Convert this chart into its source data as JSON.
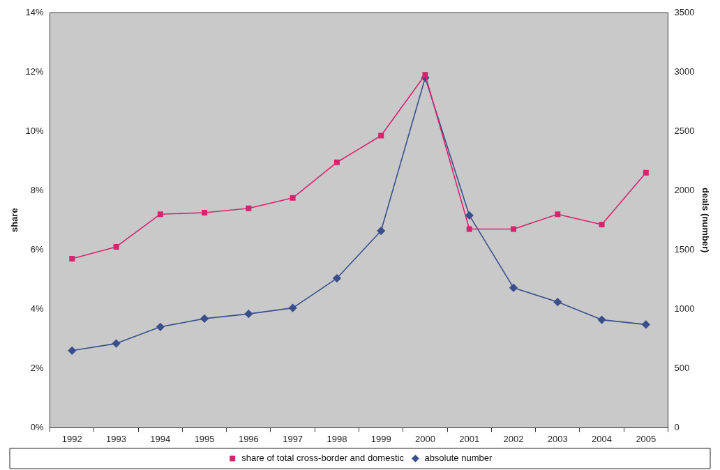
{
  "chart_data": {
    "type": "line",
    "xlabel": null,
    "ylabel": "share",
    "y2label": "deals (number)",
    "categories": [
      "1992",
      "1993",
      "1994",
      "1995",
      "1996",
      "1997",
      "1998",
      "1999",
      "2000",
      "2001",
      "2002",
      "2003",
      "2004",
      "2005"
    ],
    "series": [
      {
        "name": "share of total cross-border and domestic",
        "color": "#d6246e",
        "marker": "square",
        "values": [
          5.7,
          6.1,
          7.2,
          7.25,
          7.4,
          7.75,
          8.95,
          9.85,
          11.9,
          6.7,
          6.7,
          7.2,
          6.85,
          8.6
        ]
      },
      {
        "name": "absolute number",
        "color": "#3a4f8c",
        "marker": "diamond",
        "axis": "y2",
        "values": [
          650,
          710,
          850,
          920,
          960,
          1010,
          1260,
          1660,
          2950,
          1790,
          1180,
          1060,
          910,
          870
        ]
      }
    ],
    "ylim": [
      0,
      14
    ],
    "yticks": [
      {
        "value": 0,
        "label": "0%"
      },
      {
        "value": 2,
        "label": "2%"
      },
      {
        "value": 4,
        "label": "4%"
      },
      {
        "value": 6,
        "label": "6%"
      },
      {
        "value": 8,
        "label": "8%"
      },
      {
        "value": 10,
        "label": "10%"
      },
      {
        "value": 12,
        "label": "12%"
      },
      {
        "value": 14,
        "label": "14%"
      }
    ],
    "y2lim": [
      0,
      3500
    ],
    "y2ticks": [
      0,
      500,
      1000,
      1500,
      2000,
      2500,
      3000,
      3500
    ],
    "grid": false,
    "legend": "bottom"
  }
}
